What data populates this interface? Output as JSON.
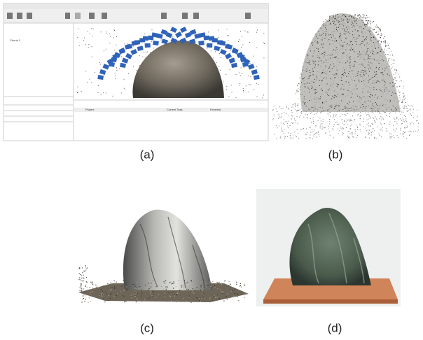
{
  "panels": [
    {
      "label": "(a)"
    },
    {
      "label": "(b)"
    },
    {
      "label": "(c)"
    },
    {
      "label": "(d)"
    }
  ],
  "ui": {
    "tree_item": "Chunk 1",
    "table_headers": [
      "Project",
      "Current Task",
      "Finished"
    ]
  }
}
